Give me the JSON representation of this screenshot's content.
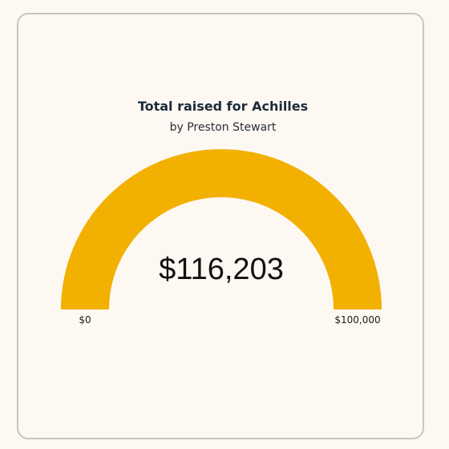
{
  "chart_data": {
    "type": "gauge",
    "title": "Total raised for Achilles",
    "subtitle": "by Preston Stewart",
    "value": 116203,
    "value_label": "$116,203",
    "min": 0,
    "max": 100000,
    "min_label": "$0",
    "max_label": "$100,000",
    "fill_color": "#f2b100",
    "track_color": "#eadfcf"
  }
}
